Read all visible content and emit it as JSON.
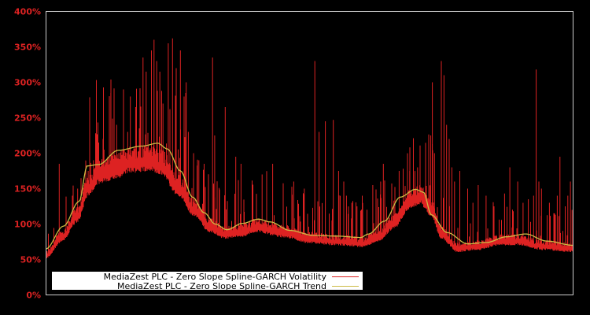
{
  "chart_data": {
    "type": "line",
    "title": "",
    "xlabel": "",
    "ylabel": "",
    "ylim": [
      0,
      400
    ],
    "y_ticks": [
      "0%",
      "50%",
      "100%",
      "150%",
      "200%",
      "250%",
      "300%",
      "350%",
      "400%"
    ],
    "y_tick_values": [
      0,
      50,
      100,
      150,
      200,
      250,
      300,
      350,
      400
    ],
    "x_ticks": [],
    "grid": false,
    "legend_position": "lower-left",
    "colors": {
      "background": "#000000",
      "frame": "#cccccc",
      "tick_label": "#dd2222",
      "volatility": "#dd2222",
      "trend": "#ccbb44",
      "legend_bg": "#ffffff"
    },
    "series": [
      {
        "name": "MediaZest PLC - Zero Slope Spline-GARCH Volatility",
        "color": "#dd2222",
        "base_x": [
          0,
          0.03,
          0.06,
          0.08,
          0.1,
          0.13,
          0.16,
          0.2,
          0.22,
          0.25,
          0.28,
          0.31,
          0.34,
          0.37,
          0.4,
          0.45,
          0.5,
          0.55,
          0.6,
          0.63,
          0.66,
          0.69,
          0.71,
          0.73,
          0.75,
          0.78,
          0.82,
          0.86,
          0.9,
          0.94,
          1.0
        ],
        "base_values": [
          55,
          80,
          110,
          150,
          168,
          175,
          185,
          188,
          180,
          150,
          120,
          95,
          85,
          88,
          95,
          87,
          78,
          75,
          72,
          80,
          100,
          130,
          137,
          120,
          85,
          65,
          68,
          75,
          75,
          68,
          65
        ],
        "spikes": [
          {
            "x": 0.025,
            "v": 185
          },
          {
            "x": 0.05,
            "v": 140
          },
          {
            "x": 0.06,
            "v": 150
          },
          {
            "x": 0.08,
            "v": 175
          },
          {
            "x": 0.09,
            "v": 190
          },
          {
            "x": 0.1,
            "v": 200
          },
          {
            "x": 0.1,
            "v": 215
          },
          {
            "x": 0.11,
            "v": 205
          },
          {
            "x": 0.123,
            "v": 285
          },
          {
            "x": 0.134,
            "v": 240
          },
          {
            "x": 0.147,
            "v": 290
          },
          {
            "x": 0.155,
            "v": 230
          },
          {
            "x": 0.16,
            "v": 280
          },
          {
            "x": 0.17,
            "v": 265
          },
          {
            "x": 0.177,
            "v": 235
          },
          {
            "x": 0.184,
            "v": 335
          },
          {
            "x": 0.19,
            "v": 315
          },
          {
            "x": 0.2,
            "v": 345
          },
          {
            "x": 0.205,
            "v": 360
          },
          {
            "x": 0.21,
            "v": 330
          },
          {
            "x": 0.216,
            "v": 315
          },
          {
            "x": 0.222,
            "v": 270
          },
          {
            "x": 0.232,
            "v": 355
          },
          {
            "x": 0.24,
            "v": 362
          },
          {
            "x": 0.247,
            "v": 320
          },
          {
            "x": 0.255,
            "v": 345
          },
          {
            "x": 0.262,
            "v": 280
          },
          {
            "x": 0.27,
            "v": 230
          },
          {
            "x": 0.28,
            "v": 200
          },
          {
            "x": 0.29,
            "v": 190
          },
          {
            "x": 0.3,
            "v": 185
          },
          {
            "x": 0.266,
            "v": 300
          },
          {
            "x": 0.265,
            "v": 275
          },
          {
            "x": 0.265,
            "v": 285
          },
          {
            "x": 0.265,
            "v": 260
          },
          {
            "x": 0.266,
            "v": 330
          },
          {
            "x": 0.266,
            "v": 300
          },
          {
            "x": 0.266,
            "v": 275
          },
          {
            "x": 0.266,
            "v": 340
          },
          {
            "x": 0.266,
            "v": 290
          },
          {
            "x": 0.266,
            "v": 320
          },
          {
            "x": 0.266,
            "v": 310
          },
          {
            "x": 0.266,
            "v": 285
          },
          {
            "x": 0.266,
            "v": 300
          },
          {
            "x": 0.266,
            "v": 305
          },
          {
            "x": 0.266,
            "v": 295
          },
          {
            "x": 0.266,
            "v": 290
          },
          {
            "x": 0.266,
            "v": 310
          },
          {
            "x": 0.266,
            "v": 320
          },
          {
            "x": 0.266,
            "v": 300
          },
          {
            "x": 0.266,
            "v": 330
          },
          {
            "x": 0.266,
            "v": 340
          },
          {
            "x": 0.266,
            "v": 310
          },
          {
            "x": 0.266,
            "v": 290
          },
          {
            "x": 0.266,
            "v": 280
          },
          {
            "x": 0.266,
            "v": 300
          },
          {
            "x": 0.266,
            "v": 310
          },
          {
            "x": 0.266,
            "v": 300
          },
          {
            "x": 0.266,
            "v": 320
          },
          {
            "x": 0.266,
            "v": 330
          },
          {
            "x": 0.266,
            "v": 340
          },
          {
            "x": 0.266,
            "v": 320
          },
          {
            "x": 0.266,
            "v": 300
          },
          {
            "x": 0.266,
            "v": 280
          },
          {
            "x": 0.266,
            "v": 270
          },
          {
            "x": 0.266,
            "v": 265
          },
          {
            "x": 0.266,
            "v": 280
          },
          {
            "x": 0.266,
            "v": 300
          },
          {
            "x": 0.266,
            "v": 320
          },
          {
            "x": 0.266,
            "v": 330
          },
          {
            "x": 0.266,
            "v": 340
          },
          {
            "x": 0.266,
            "v": 345
          },
          {
            "x": 0.266,
            "v": 350
          },
          {
            "x": 0.266,
            "v": 360
          },
          {
            "x": 0.266,
            "v": 355
          },
          {
            "x": 0.266,
            "v": 340
          },
          {
            "x": 0.266,
            "v": 320
          },
          {
            "x": 0.266,
            "v": 300
          },
          {
            "x": 0.266,
            "v": 280
          },
          {
            "x": 0.266,
            "v": 260
          },
          {
            "x": 0.266,
            "v": 240
          },
          {
            "x": 0.266,
            "v": 220
          },
          {
            "x": 0.266,
            "v": 210
          },
          {
            "x": 0.266,
            "v": 200
          },
          {
            "x": 0.266,
            "v": 190
          },
          {
            "x": 0.266,
            "v": 185
          },
          {
            "x": 0.266,
            "v": 180
          },
          {
            "x": 0.266,
            "v": 175
          },
          {
            "x": 0.266,
            "v": 170
          },
          {
            "x": 0.266,
            "v": 165
          },
          {
            "x": 0.266,
            "v": 160
          },
          {
            "x": 0.266,
            "v": 155
          },
          {
            "x": 0.266,
            "v": 150
          },
          {
            "x": 0.266,
            "v": 145
          },
          {
            "x": 0.266,
            "v": 140
          },
          {
            "x": 0.266,
            "v": 135
          },
          {
            "x": 0.266,
            "v": 130
          },
          {
            "x": 0.266,
            "v": 125
          },
          {
            "x": 0.266,
            "v": 120
          },
          {
            "x": 0.266,
            "v": 115
          },
          {
            "x": 0.266,
            "v": 110
          },
          {
            "x": 0.266,
            "v": 105
          },
          {
            "x": 0.266,
            "v": 100
          },
          {
            "x": 0.266,
            "v": 95
          },
          {
            "x": 0.266,
            "v": 90
          },
          {
            "x": 0.266,
            "v": 85
          },
          {
            "x": 0.266,
            "v": 80
          },
          {
            "x": 0.266,
            "v": 75
          },
          {
            "x": 0.266,
            "v": 70
          },
          {
            "x": 0.266,
            "v": 65
          },
          {
            "x": 0.266,
            "v": 60
          },
          {
            "x": 0.266,
            "v": 55
          },
          {
            "x": 0.266,
            "v": 50
          },
          {
            "x": 0.266,
            "v": 45
          },
          {
            "x": 0.266,
            "v": 40
          },
          {
            "x": 0.266,
            "v": 35
          },
          {
            "x": 0.266,
            "v": 30
          },
          {
            "x": 0.266,
            "v": 25
          },
          {
            "x": 0.266,
            "v": 20
          },
          {
            "x": 0.266,
            "v": 15
          },
          {
            "x": 0.266,
            "v": 10
          },
          {
            "x": 0.266,
            "v": 5
          },
          {
            "x": 0.266,
            "v": 0
          }
        ]
      },
      {
        "name": "MediaZest PLC - Zero Slope Spline-GARCH Trend",
        "color": "#ccbb44",
        "x": [
          0,
          0.033,
          0.063,
          0.078,
          0.1,
          0.137,
          0.182,
          0.212,
          0.23,
          0.255,
          0.278,
          0.3,
          0.321,
          0.343,
          0.373,
          0.403,
          0.425,
          0.463,
          0.507,
          0.552,
          0.597,
          0.612,
          0.642,
          0.672,
          0.701,
          0.716,
          0.731,
          0.761,
          0.8,
          0.836,
          0.873,
          0.91,
          0.95,
          1.0
        ],
        "values": [
          65,
          97,
          132,
          182,
          184,
          204,
          210,
          214,
          206,
          175,
          138,
          116,
          100,
          92,
          101,
          107,
          103,
          91,
          84,
          83,
          81,
          86,
          104,
          138,
          149,
          145,
          113,
          88,
          72,
          74,
          82,
          86,
          76,
          70
        ]
      }
    ]
  },
  "legend": {
    "items": [
      {
        "label": "MediaZest PLC - Zero Slope Spline-GARCH Volatility",
        "color": "#dd2222"
      },
      {
        "label": "MediaZest PLC - Zero Slope Spline-GARCH Trend",
        "color": "#ccbb44"
      }
    ]
  }
}
